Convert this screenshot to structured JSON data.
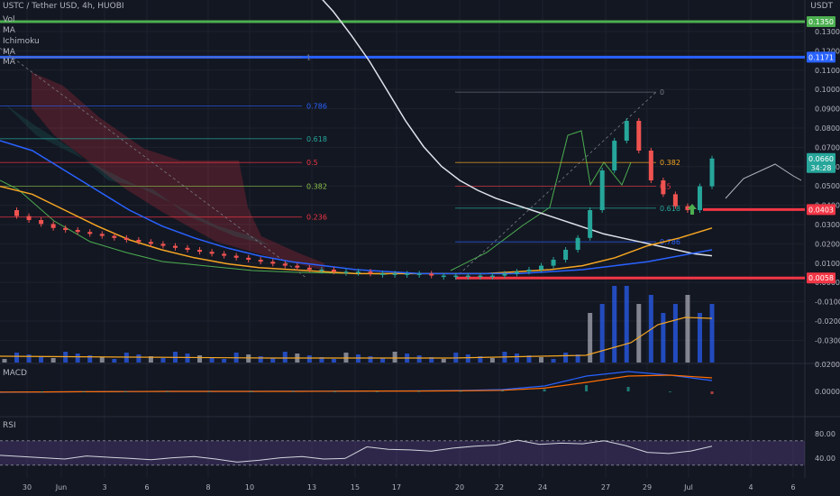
{
  "header": {
    "symbol_line": "USTC / Tether USD, 4h, HUOBI",
    "quote_unit": "USDT",
    "indicators": [
      "Vol",
      "MA",
      "Ichimoku",
      "MA",
      "MA"
    ]
  },
  "panes": {
    "macd": "MACD",
    "rsi": "RSI"
  },
  "colors": {
    "background": "#131722",
    "grid": "#1e222d",
    "up": "#26a69a",
    "down": "#ef5350",
    "green_line": "#4caf50",
    "blue_line": "#2962ff",
    "red_line": "#f23645",
    "white_ma": "#e0e3eb",
    "orange_ma": "#f5a623",
    "blue_ma": "#2962ff",
    "rsi_band": "#7e57c2"
  },
  "chart_data": [
    {
      "type": "line",
      "pane": "price",
      "y_ticks": [
        "0.1300",
        "0.1200",
        "0.1100",
        "0.1000",
        "0.0900",
        "0.0800",
        "0.0700",
        "0.0600",
        "0.0500",
        "0.0400",
        "0.0300",
        "0.0200",
        "0.0100",
        "0.0000",
        "-0.0100",
        "-0.0200",
        "-0.0300"
      ],
      "x_ticks": [
        "30",
        "Jun",
        "3",
        "6",
        "8",
        "10",
        "13",
        "15",
        "17",
        "20",
        "22",
        "24",
        "27",
        "29",
        "Jul",
        "4",
        "6"
      ],
      "price_tags": [
        {
          "label": "0.1350",
          "color": "#4caf50"
        },
        {
          "label": "0.1171",
          "color": "#2962ff"
        },
        {
          "label": "0.0660",
          "color": "#26a69a",
          "sub": "34:28"
        },
        {
          "label": "0.0403",
          "color": "#f23645"
        },
        {
          "label": "0.0058",
          "color": "#f23645"
        }
      ],
      "horizontal_levels": [
        {
          "name": "green-resistance",
          "value": 0.135,
          "color": "#4caf50"
        },
        {
          "name": "blue-resistance",
          "value": 0.1171,
          "color": "#2962ff"
        },
        {
          "name": "red-support",
          "value": 0.0403,
          "color": "#f23645"
        },
        {
          "name": "red-bottom",
          "value": 0.0058,
          "color": "#f23645"
        }
      ],
      "fib_left": [
        {
          "label": "1",
          "value": 0.1171
        },
        {
          "label": "0.786",
          "value": 0.0925
        },
        {
          "label": "0.618",
          "value": 0.076
        },
        {
          "label": "0.5",
          "value": 0.064
        },
        {
          "label": "0.382",
          "value": 0.052
        },
        {
          "label": "0.236",
          "value": 0.0365
        }
      ],
      "fib_right": [
        {
          "label": "0",
          "value": 0.0995
        },
        {
          "label": "0.382",
          "value": 0.064
        },
        {
          "label": "0.5",
          "value": 0.052
        },
        {
          "label": "0.618",
          "value": 0.041
        },
        {
          "label": "0.786",
          "value": 0.024
        }
      ],
      "price_series": [
        0.04,
        0.037,
        0.035,
        0.033,
        0.031,
        0.03,
        0.029,
        0.028,
        0.027,
        0.026,
        0.025,
        0.024,
        0.023,
        0.022,
        0.021,
        0.02,
        0.019,
        0.018,
        0.017,
        0.016,
        0.015,
        0.014,
        0.013,
        0.012,
        0.011,
        0.01,
        0.01,
        0.009,
        0.009,
        0.009,
        0.008,
        0.008,
        0.008,
        0.008,
        0.008,
        0.007,
        0.007,
        0.007,
        0.007,
        0.007,
        0.007,
        0.008,
        0.009,
        0.01,
        0.012,
        0.015,
        0.02,
        0.026,
        0.04,
        0.06,
        0.075,
        0.085,
        0.07,
        0.055,
        0.048,
        0.042,
        0.04,
        0.052,
        0.066
      ],
      "white_ma": [
        0.16,
        0.15,
        0.14,
        0.128,
        0.115,
        0.1,
        0.085,
        0.072,
        0.062,
        0.055,
        0.05,
        0.046,
        0.043,
        0.04,
        0.037,
        0.034,
        0.031,
        0.028,
        0.026,
        0.024,
        0.022,
        0.02,
        0.018,
        0.017
      ],
      "orange_ma": [
        0.052,
        0.048,
        0.04,
        0.032,
        0.025,
        0.02,
        0.016,
        0.013,
        0.011,
        0.01,
        0.009,
        0.008,
        0.008,
        0.008,
        0.008,
        0.008,
        0.009,
        0.01,
        0.012,
        0.016,
        0.022,
        0.026,
        0.031
      ],
      "blue_ma": [
        0.075,
        0.07,
        0.06,
        0.05,
        0.04,
        0.032,
        0.026,
        0.021,
        0.017,
        0.014,
        0.012,
        0.01,
        0.009,
        0.008,
        0.008,
        0.008,
        0.008,
        0.009,
        0.01,
        0.012,
        0.014,
        0.017,
        0.02
      ]
    },
    {
      "type": "line",
      "pane": "macd",
      "y_ticks": [
        "0.0200",
        "0.0000"
      ],
      "macd": [
        -0.0005,
        -0.0003,
        -0.0002,
        -0.0001,
        0.0,
        0.0,
        0.0,
        0.0001,
        0.0001,
        0.0002,
        0.0003,
        0.0005,
        0.001,
        0.003,
        0.0085,
        0.011,
        0.009,
        0.006
      ],
      "signal": [
        -0.0004,
        -0.0003,
        -0.0002,
        -0.0001,
        0.0,
        0.0,
        0.0,
        0.0,
        0.0001,
        0.0002,
        0.0002,
        0.0003,
        0.0006,
        0.0018,
        0.005,
        0.0085,
        0.009,
        0.0075
      ]
    },
    {
      "type": "line",
      "pane": "rsi",
      "y_ticks": [
        "80.00",
        "40.00"
      ],
      "band": [
        30,
        70
      ],
      "rsi": [
        46,
        44,
        42,
        40,
        45,
        43,
        41,
        39,
        42,
        44,
        40,
        35,
        38,
        42,
        44,
        40,
        41,
        60,
        56,
        55,
        53,
        58,
        61,
        63,
        71,
        64,
        66,
        65,
        70,
        62,
        51,
        49,
        53,
        61
      ]
    }
  ]
}
